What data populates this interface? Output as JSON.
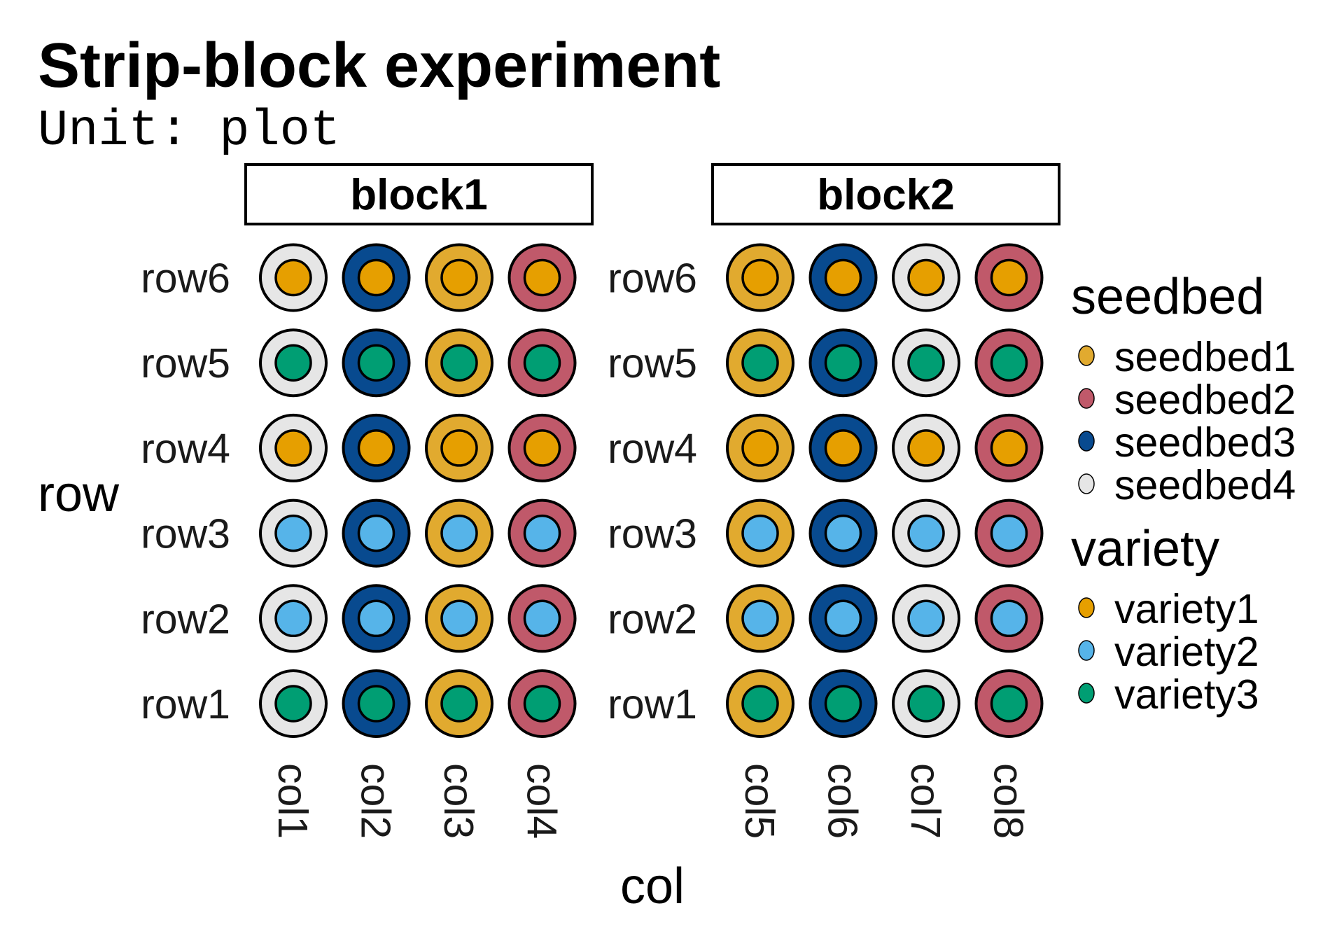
{
  "chart_data": {
    "type": "scatter",
    "title": "Strip-block experiment",
    "subtitle": "Unit: plot",
    "xlabel": "col",
    "ylabel": "row",
    "rows": [
      "row1",
      "row2",
      "row3",
      "row4",
      "row5",
      "row6"
    ],
    "facets": [
      {
        "label": "block1",
        "cols": [
          "col1",
          "col2",
          "col3",
          "col4"
        ]
      },
      {
        "label": "block2",
        "cols": [
          "col5",
          "col6",
          "col7",
          "col8"
        ]
      }
    ],
    "seedbed_by_col": {
      "col1": "seedbed4",
      "col2": "seedbed3",
      "col3": "seedbed1",
      "col4": "seedbed2",
      "col5": "seedbed1",
      "col6": "seedbed3",
      "col7": "seedbed4",
      "col8": "seedbed2"
    },
    "variety_by_row": {
      "block1": {
        "row1": "variety3",
        "row2": "variety2",
        "row3": "variety2",
        "row4": "variety1",
        "row5": "variety3",
        "row6": "variety1"
      },
      "block2": {
        "row1": "variety3",
        "row2": "variety2",
        "row3": "variety2",
        "row4": "variety1",
        "row5": "variety3",
        "row6": "variety1"
      }
    },
    "legends": [
      {
        "title": "seedbed",
        "items": [
          {
            "label": "seedbed1",
            "color": "#E1AA2F"
          },
          {
            "label": "seedbed2",
            "color": "#C0596A"
          },
          {
            "label": "seedbed3",
            "color": "#084A8F"
          },
          {
            "label": "seedbed4",
            "color": "#E6E6E6"
          }
        ]
      },
      {
        "title": "variety",
        "items": [
          {
            "label": "variety1",
            "color": "#E69F00"
          },
          {
            "label": "variety2",
            "color": "#56B4E9"
          },
          {
            "label": "variety3",
            "color": "#009E73"
          }
        ]
      }
    ]
  }
}
